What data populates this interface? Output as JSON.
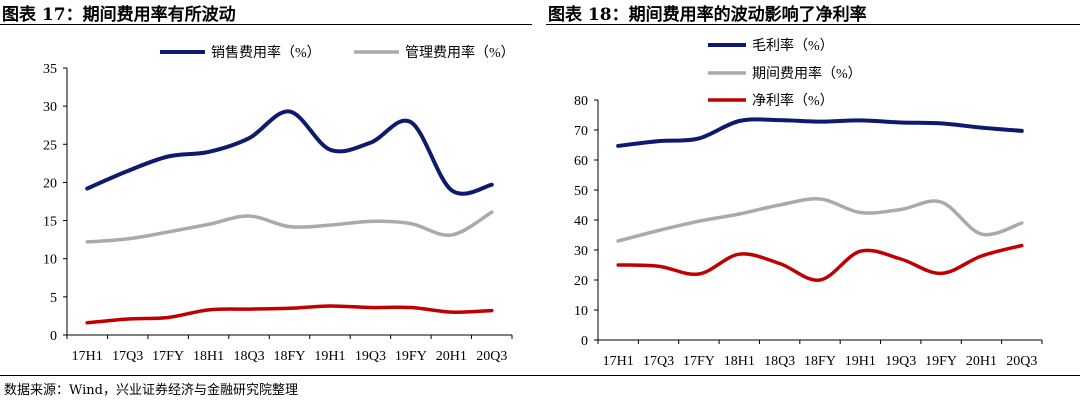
{
  "source": "数据来源：Wind，兴业证券经济与金融研究院整理",
  "chart_data": [
    {
      "type": "line",
      "title": "图表 17：期间费用率有所波动",
      "ylim": [
        0,
        35
      ],
      "yticks": [
        0,
        5,
        10,
        15,
        20,
        25,
        30,
        35
      ],
      "legend": "top",
      "categories": [
        "17H1",
        "17Q3",
        "17FY",
        "18H1",
        "18Q3",
        "18FY",
        "19H1",
        "19Q3",
        "19FY",
        "20H1",
        "20Q3"
      ],
      "series": [
        {
          "name": "销售费用率（%）",
          "color": "#0d1a6e",
          "values": [
            19.2,
            21.5,
            23.4,
            24.0,
            25.8,
            29.3,
            24.3,
            25.2,
            27.9,
            19.0,
            19.7
          ]
        },
        {
          "name": "管理费用率（%）",
          "color": "#aaaaaa",
          "values": [
            12.2,
            12.6,
            13.5,
            14.5,
            15.6,
            14.2,
            14.4,
            14.9,
            14.6,
            13.1,
            16.1
          ]
        },
        {
          "color": "#c00000",
          "values": [
            1.6,
            2.1,
            2.3,
            3.3,
            3.4,
            3.5,
            3.8,
            3.6,
            3.6,
            3.0,
            3.2
          ]
        }
      ]
    },
    {
      "type": "line",
      "title": "图表 18：期间费用率的波动影响了净利率",
      "ylim": [
        0,
        80
      ],
      "yticks": [
        0,
        10,
        20,
        30,
        40,
        50,
        60,
        70,
        80
      ],
      "legend": "top",
      "categories": [
        "17H1",
        "17Q3",
        "17FY",
        "18H1",
        "18Q3",
        "18FY",
        "19H1",
        "19Q3",
        "19FY",
        "20H1",
        "20Q3"
      ],
      "series": [
        {
          "name": "毛利率（%）",
          "color": "#0d1a6e",
          "values": [
            64.7,
            66.3,
            67.2,
            73.0,
            73.3,
            72.8,
            73.2,
            72.5,
            72.2,
            70.8,
            69.7
          ]
        },
        {
          "name": "期间费用率（%）",
          "color": "#aaaaaa",
          "values": [
            33.0,
            36.5,
            39.6,
            42.0,
            45.0,
            47.0,
            42.5,
            43.5,
            46.0,
            35.3,
            39.0
          ]
        },
        {
          "name": "净利率（%）",
          "color": "#c00000",
          "values": [
            25.0,
            24.6,
            22.0,
            28.6,
            25.5,
            20.0,
            29.6,
            27.0,
            22.2,
            28.0,
            31.5
          ]
        }
      ]
    }
  ]
}
